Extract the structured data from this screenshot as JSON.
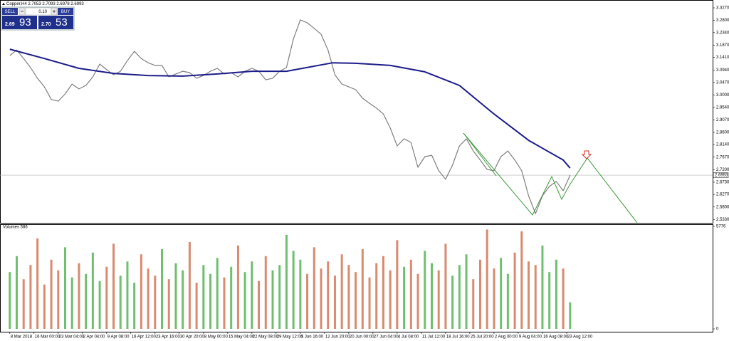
{
  "chart_data": {
    "type": "line",
    "title": "Copper,H4 2.7053 2.7093 2.6978 2.6993",
    "x": [
      0,
      12,
      24,
      36,
      48,
      60,
      72,
      84,
      96,
      108,
      120,
      132,
      144,
      156,
      168,
      180,
      192,
      204,
      216,
      228,
      240,
      252,
      264,
      276,
      288,
      300,
      312,
      324,
      336,
      348,
      360,
      372,
      384,
      396,
      408,
      420,
      432,
      444,
      456,
      468,
      480,
      492,
      504,
      516,
      528,
      540,
      552,
      564,
      576,
      588,
      600,
      612,
      624,
      636,
      648,
      660,
      672,
      684,
      696,
      708,
      720,
      732,
      744,
      756,
      768,
      780,
      792,
      804,
      816,
      828,
      840,
      852,
      864,
      876,
      888,
      900,
      912,
      924,
      936,
      948,
      960,
      972
    ],
    "series": [
      {
        "color": "#7f7f7f",
        "values": [
          3.148,
          3.169,
          3.137,
          3.103,
          3.063,
          3.031,
          2.983,
          2.977,
          3.004,
          3.041,
          3.023,
          3.036,
          3.068,
          3.116,
          3.095,
          3.076,
          3.089,
          3.129,
          3.164,
          3.137,
          3.121,
          3.111,
          3.111,
          3.068,
          3.079,
          3.089,
          3.084,
          3.063,
          3.073,
          3.089,
          3.1,
          3.079,
          3.084,
          3.068,
          3.089,
          3.1,
          3.089,
          3.057,
          3.063,
          3.089,
          3.103,
          3.21,
          3.282,
          3.271,
          3.25,
          3.228,
          3.169,
          3.076,
          3.041,
          3.031,
          3.02,
          2.988,
          2.969,
          2.951,
          2.929,
          2.876,
          2.809,
          2.836,
          2.822,
          2.729,
          2.769,
          2.774,
          2.716,
          2.684,
          2.737,
          2.809,
          2.836,
          2.79,
          2.756,
          2.721,
          2.716,
          2.769,
          2.79,
          2.756,
          2.716,
          2.622,
          2.555,
          2.622,
          2.657,
          2.676,
          2.641,
          2.6993
        ]
      },
      {
        "color": "#1c1c8a",
        "x": [
          0,
          60,
          120,
          180,
          240,
          300,
          360,
          420,
          480,
          560,
          600,
          660,
          720,
          780,
          840,
          900,
          960,
          972
        ],
        "values": [
          3.172,
          3.137,
          3.1,
          3.081,
          3.073,
          3.071,
          3.079,
          3.089,
          3.089,
          3.121,
          3.119,
          3.111,
          3.087,
          3.036,
          2.929,
          2.83,
          2.756,
          2.726
        ]
      }
    ],
    "current_price": 2.6993,
    "xlim": [
      -17,
      1218
    ],
    "xticks": [
      {
        "value": 0,
        "label": "8 Mar 2018"
      },
      {
        "value": 42,
        "label": "16 Mar 00:00"
      },
      {
        "value": 84,
        "label": "23 Mar 04:00"
      },
      {
        "value": 126,
        "label": "2 Apr 04:00"
      },
      {
        "value": 168,
        "label": "9 Apr 08:00"
      },
      {
        "value": 210,
        "label": "16 Apr 12:00"
      },
      {
        "value": 252,
        "label": "23 Apr 16:00"
      },
      {
        "value": 294,
        "label": "30 Apr 20:00"
      },
      {
        "value": 336,
        "label": "8 May 00:00"
      },
      {
        "value": 378,
        "label": "15 May 04:00"
      },
      {
        "value": 420,
        "label": "22 May 08:00"
      },
      {
        "value": 462,
        "label": "29 May 12:00"
      },
      {
        "value": 504,
        "label": "5 Jun 16:00"
      },
      {
        "value": 546,
        "label": "12 Jun 20:00"
      },
      {
        "value": 588,
        "label": "20 Jun 00:00"
      },
      {
        "value": 630,
        "label": "27 Jun 04:00"
      },
      {
        "value": 672,
        "label": "4 Jul 08:00"
      },
      {
        "value": 714,
        "label": "11 Jul 12:00"
      },
      {
        "value": 756,
        "label": "18 Jul 16:00"
      },
      {
        "value": 798,
        "label": "25 Jul 20:00"
      },
      {
        "value": 840,
        "label": "2 Aug 00:00"
      },
      {
        "value": 882,
        "label": "9 Aug 04:00"
      },
      {
        "value": 924,
        "label": "16 Aug 08:00"
      },
      {
        "value": 966,
        "label": "23 Aug 12:00"
      }
    ],
    "ylim": [
      2.5206,
      3.3564
    ],
    "yticks": [
      {
        "value": 3.327,
        "label": "3.3270"
      },
      {
        "value": 3.28,
        "label": "3.2800"
      },
      {
        "value": 3.234,
        "label": "3.2340"
      },
      {
        "value": 3.187,
        "label": "3.1870"
      },
      {
        "value": 3.141,
        "label": "3.1410"
      },
      {
        "value": 3.094,
        "label": "3.0940"
      },
      {
        "value": 3.047,
        "label": "3.0470"
      },
      {
        "value": 3,
        "label": "3.0000"
      },
      {
        "value": 2.954,
        "label": "2.9540"
      },
      {
        "value": 2.907,
        "label": "2.9070"
      },
      {
        "value": 2.86,
        "label": "2.8600"
      },
      {
        "value": 2.814,
        "label": "2.8140"
      },
      {
        "value": 2.767,
        "label": "2.7670"
      },
      {
        "value": 2.72,
        "label": "2.7200"
      },
      {
        "value": 2.673,
        "label": "2.6730"
      },
      {
        "value": 2.627,
        "label": "2.6270"
      },
      {
        "value": 2.58,
        "label": "2.5800"
      },
      {
        "value": 2.533,
        "label": "2.5330"
      }
    ],
    "volume_panel": {
      "title": "Volumes 586",
      "up_color": "#6fbf6f",
      "down_color": "#d98a6f",
      "ylim": [
        0,
        5776
      ],
      "yticks": [
        0,
        5776
      ],
      "values": [
        3200,
        4100,
        2800,
        3600,
        5100,
        2500,
        3900,
        3300,
        4600,
        2900,
        3700,
        3100,
        4300,
        2700,
        3500,
        4800,
        3000,
        3800,
        2600,
        4200,
        3400,
        3000,
        4500,
        2800,
        3700,
        3300,
        4900,
        2600,
        3600,
        3100,
        4000,
        2900,
        3500,
        4700,
        3200,
        3800,
        2700,
        4100,
        3300,
        3600,
        5300,
        4400,
        3900,
        3100,
        4600,
        3400,
        3800,
        3000,
        4200,
        3600,
        3200,
        4500,
        2900,
        3700,
        4100,
        3300,
        5000,
        3500,
        3900,
        3100,
        4400,
        3700,
        3300,
        4800,
        3000,
        3600,
        4200,
        2800,
        3900,
        5600,
        3400,
        4000,
        3100,
        4300,
        5500,
        3800,
        3600,
        4700,
        3200,
        3900,
        3400,
        1500
      ]
    },
    "trade_panel": {
      "sell": "SELL",
      "lot": "0.10",
      "buy": "BUY",
      "bid_big": "2.69",
      "bid_pips": "93",
      "ask_big": "2.70",
      "ask_pips": "53"
    }
  }
}
